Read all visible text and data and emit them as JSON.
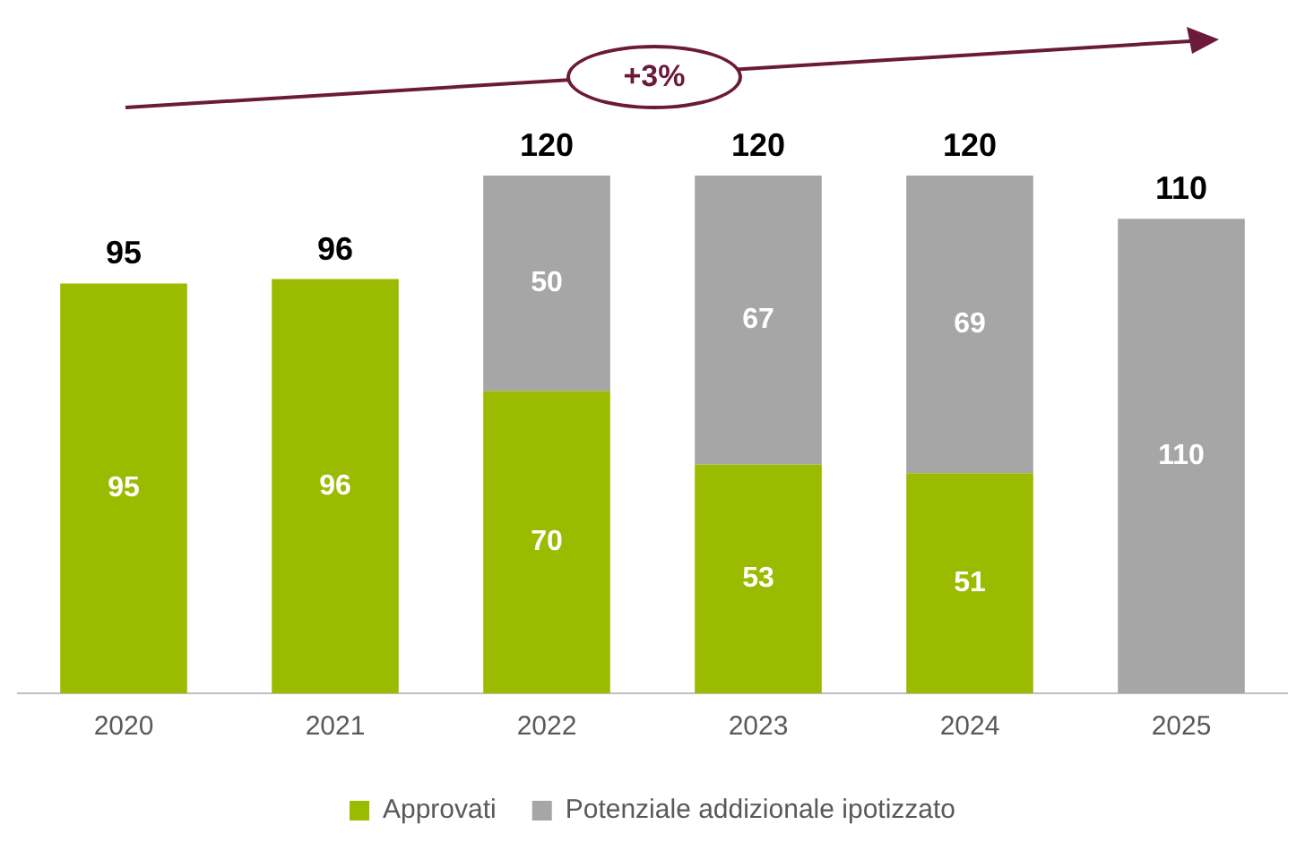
{
  "chart_data": {
    "type": "bar",
    "stacked": true,
    "categories": [
      "2020",
      "2021",
      "2022",
      "2023",
      "2024",
      "2025"
    ],
    "series": [
      {
        "name": "Approvati",
        "color": "#9bbb00",
        "values": [
          95,
          96,
          70,
          53,
          51,
          null
        ]
      },
      {
        "name": "Potenziale addizionale ipotizzato",
        "color": "#a6a6a6",
        "values": [
          null,
          null,
          50,
          67,
          69,
          110
        ]
      }
    ],
    "data_labels": true,
    "totals": [
      "95",
      "96",
      "120",
      "120",
      "120",
      "110"
    ],
    "annotations": [
      "+3%"
    ],
    "legend": "bottom",
    "grid": false
  }
}
